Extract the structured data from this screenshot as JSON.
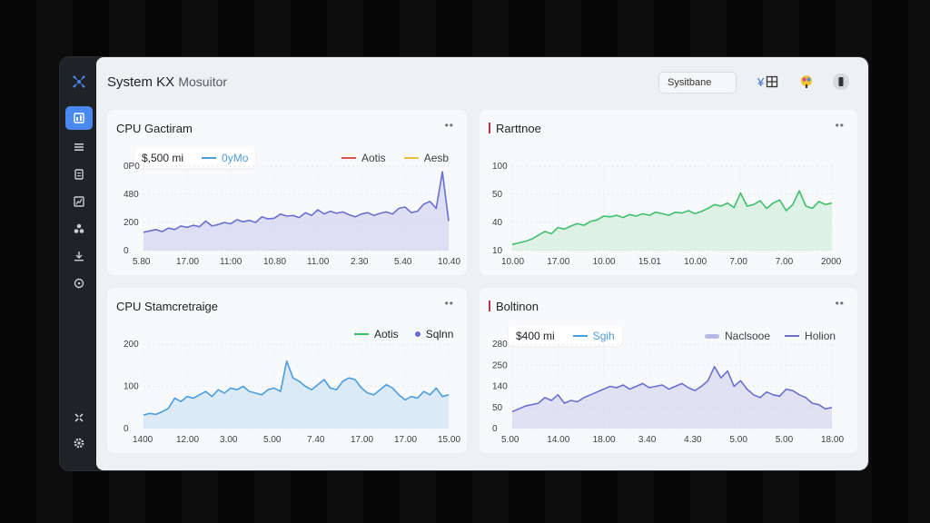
{
  "app": {
    "title": "System KX",
    "subtitle": "Mosuitor"
  },
  "search": {
    "placeholder": "Sysitbane"
  },
  "colors": {
    "accent": "#4a8af0",
    "purple": "#6a6fcf",
    "green": "#3fbf6b",
    "blue": "#4a9de0",
    "red": "#d9534f",
    "yellow": "#e8c23a"
  },
  "sidebar": {
    "icons": [
      "logo-icon",
      "dashboard-icon",
      "list-icon",
      "document-icon",
      "chart-icon",
      "cluster-icon",
      "download-icon",
      "target-icon",
      "grid-icon",
      "gear-icon"
    ]
  },
  "cards": [
    {
      "title": "CPU Gactiram",
      "menu": "••",
      "pill": {
        "value": "$,500 mi",
        "label": "0yMo"
      },
      "legend": [
        {
          "label": "Aotis"
        },
        {
          "label": "Aesb"
        }
      ],
      "y_ticks": [
        "0P0",
        "480",
        "200",
        "0"
      ],
      "x_ticks": [
        "5.80",
        "17.00",
        "11:00",
        "10.80",
        "11.00",
        "2.30",
        "5.40",
        "10.40"
      ]
    },
    {
      "title": "Rarttnoe",
      "menu": "••",
      "y_ticks": [
        "100",
        "50",
        "40",
        "10"
      ],
      "x_ticks": [
        "10.00",
        "17.00",
        "10.00",
        "15.01",
        "10.00",
        "7.00",
        "7.00",
        "2000"
      ]
    },
    {
      "title": "CPU Stamcretraige",
      "menu": "••",
      "legend": [
        {
          "label": "Aotis"
        },
        {
          "label": "Sqlnn"
        }
      ],
      "y_ticks": [
        "200",
        "100",
        "0"
      ],
      "x_ticks": [
        "1400",
        "12.00",
        "3.00",
        "5.00",
        "7.40",
        "17.00",
        "17.00",
        "15.00"
      ]
    },
    {
      "title": "Boltinon",
      "menu": "••",
      "pill": {
        "value": "$400 mi",
        "label": "Sgih"
      },
      "legend": [
        {
          "label": "Naclsooe"
        },
        {
          "label": "Holion"
        }
      ],
      "y_ticks": [
        "280",
        "250",
        "140",
        "50",
        "0"
      ],
      "x_ticks": [
        "5.00",
        "14.00",
        "18.00",
        "3.40",
        "4.30",
        "5.00",
        "5.00",
        "18.00"
      ]
    }
  ],
  "chart_data": [
    {
      "type": "area",
      "x": [
        0,
        1,
        2,
        3,
        4,
        5,
        6,
        7,
        8,
        9,
        10,
        11,
        12,
        13,
        14,
        15,
        16,
        17,
        18,
        19,
        20,
        21,
        22,
        23,
        24,
        25,
        26,
        27,
        28,
        29,
        30,
        31,
        32,
        33,
        34,
        35,
        36,
        37,
        38,
        39,
        40,
        41,
        42,
        43,
        44,
        45,
        46,
        47,
        48,
        49
      ],
      "series": [
        {
          "values": [
            130,
            140,
            150,
            135,
            160,
            150,
            175,
            165,
            180,
            170,
            210,
            175,
            185,
            200,
            190,
            220,
            205,
            215,
            200,
            240,
            225,
            230,
            260,
            245,
            250,
            235,
            270,
            250,
            290,
            260,
            280,
            265,
            275,
            255,
            240,
            260,
            270,
            250,
            265,
            275,
            260,
            300,
            310,
            270,
            280,
            330,
            350,
            300,
            560,
            210
          ]
        }
      ],
      "ylim": [
        0,
        600
      ]
    },
    {
      "type": "area",
      "x": [
        0,
        1,
        2,
        3,
        4,
        5,
        6,
        7,
        8,
        9,
        10,
        11,
        12,
        13,
        14,
        15,
        16,
        17,
        18,
        19,
        20,
        21,
        22,
        23,
        24,
        25,
        26,
        27,
        28,
        29,
        30,
        31,
        32,
        33,
        34,
        35,
        36,
        37,
        38,
        39,
        40,
        41,
        42,
        43,
        44,
        45,
        46,
        47,
        48,
        49
      ],
      "series": [
        {
          "values": [
            8,
            10,
            12,
            15,
            20,
            25,
            22,
            30,
            28,
            32,
            35,
            33,
            38,
            40,
            45,
            44,
            46,
            43,
            47,
            45,
            48,
            46,
            50,
            48,
            46,
            50,
            49,
            52,
            48,
            51,
            55,
            60,
            58,
            62,
            56,
            75,
            58,
            60,
            65,
            55,
            62,
            66,
            52,
            60,
            78,
            58,
            55,
            64,
            60,
            62
          ]
        }
      ],
      "ylim": [
        0,
        110
      ]
    },
    {
      "type": "area",
      "x": [
        0,
        1,
        2,
        3,
        4,
        5,
        6,
        7,
        8,
        9,
        10,
        11,
        12,
        13,
        14,
        15,
        16,
        17,
        18,
        19,
        20,
        21,
        22,
        23,
        24,
        25,
        26,
        27,
        28,
        29,
        30,
        31,
        32,
        33,
        34,
        35,
        36,
        37,
        38,
        39,
        40,
        41,
        42,
        43,
        44,
        45,
        46,
        47,
        48,
        49
      ],
      "series": [
        {
          "values": [
            40,
            45,
            42,
            50,
            60,
            90,
            80,
            95,
            90,
            100,
            110,
            95,
            115,
            105,
            120,
            115,
            125,
            110,
            105,
            100,
            115,
            120,
            110,
            200,
            150,
            140,
            125,
            115,
            130,
            145,
            120,
            115,
            140,
            150,
            145,
            120,
            105,
            100,
            115,
            130,
            120,
            100,
            85,
            95,
            90,
            110,
            100,
            120,
            95,
            100
          ]
        }
      ],
      "ylim": [
        0,
        250
      ]
    },
    {
      "type": "area",
      "x": [
        0,
        1,
        2,
        3,
        4,
        5,
        6,
        7,
        8,
        9,
        10,
        11,
        12,
        13,
        14,
        15,
        16,
        17,
        18,
        19,
        20,
        21,
        22,
        23,
        24,
        25,
        26,
        27,
        28,
        29,
        30,
        31,
        32,
        33,
        34,
        35,
        36,
        37,
        38,
        39,
        40,
        41,
        42,
        43,
        44,
        45,
        46,
        47,
        48,
        49
      ],
      "series": [
        {
          "values": [
            60,
            70,
            80,
            85,
            90,
            110,
            100,
            120,
            90,
            100,
            95,
            110,
            120,
            130,
            140,
            150,
            145,
            155,
            140,
            150,
            160,
            145,
            150,
            155,
            140,
            150,
            160,
            145,
            135,
            150,
            170,
            220,
            180,
            205,
            150,
            170,
            140,
            120,
            110,
            130,
            120,
            115,
            140,
            135,
            120,
            110,
            90,
            85,
            70,
            75
          ]
        }
      ],
      "ylim": [
        0,
        300
      ]
    }
  ]
}
